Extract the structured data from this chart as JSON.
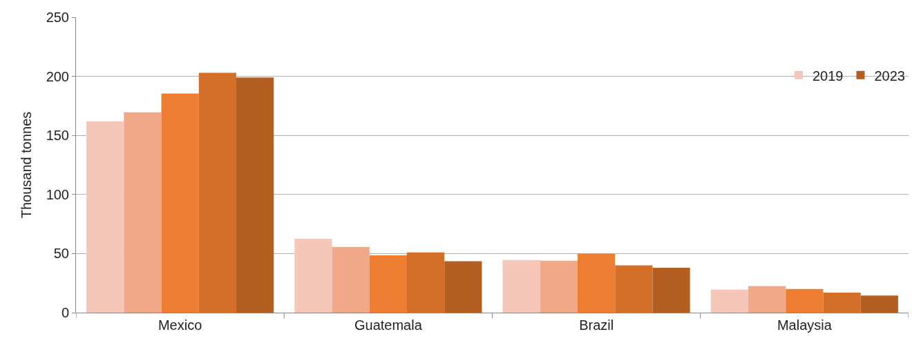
{
  "chart_data": {
    "type": "bar",
    "ylabel": "Thousand tonnes",
    "categories": [
      "Mexico",
      "Guatemala",
      "Brazil",
      "Malaysia"
    ],
    "series": [
      {
        "name": "2019",
        "color": "#f4c7b8",
        "values": [
          162,
          62.5,
          44.5,
          19.5
        ]
      },
      {
        "color": "#f0a889",
        "values": [
          169.5,
          55.5,
          44,
          22.5
        ]
      },
      {
        "color": "#ed7d31",
        "values": [
          185.5,
          48.5,
          50,
          20
        ]
      },
      {
        "color": "#d46f2a",
        "values": [
          203,
          51,
          40,
          17
        ]
      },
      {
        "name": "2023",
        "color": "#b45f22",
        "values": [
          199,
          43.5,
          38,
          14.5
        ]
      }
    ],
    "ylim": [
      0,
      250
    ],
    "yticks": [
      0,
      50,
      100,
      150,
      200,
      250
    ],
    "grid": "y",
    "legend": "top right"
  }
}
